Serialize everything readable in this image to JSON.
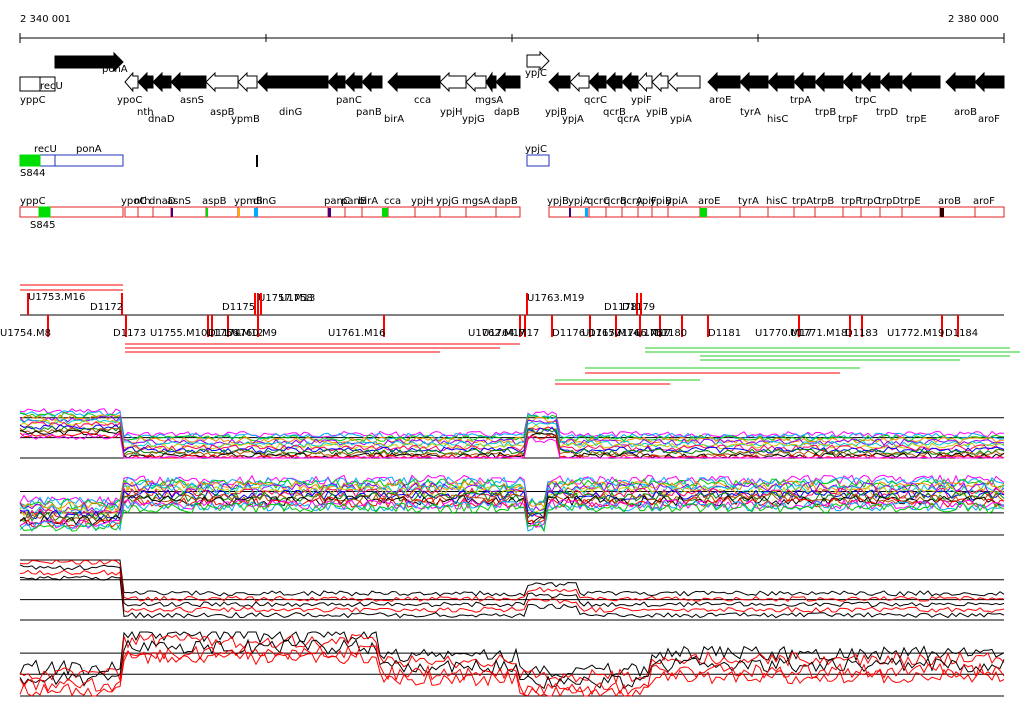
{
  "coordinates": {
    "start_label": "2 340 001",
    "end_label": "2 380 000"
  },
  "colors": {
    "gene_solid": "#000000",
    "gene_open": "#ffffff",
    "box_red": "#e02020",
    "box_blue": "#2030c0",
    "green": "#00dd00",
    "track_line": "#000000",
    "red_line": "#ff0000",
    "green_line": "#22cc22"
  },
  "genes_top": [
    {
      "name": "yppC",
      "filled": false,
      "dir": "none",
      "label_row": 1
    },
    {
      "name": "recU",
      "filled": false,
      "dir": "none",
      "label_row": 0
    },
    {
      "name": "ponA",
      "filled": true,
      "dir": "right",
      "label_row": 0
    },
    {
      "name": "ypoC",
      "filled": false,
      "dir": "left",
      "label_row": 1
    },
    {
      "name": "nth",
      "filled": true,
      "dir": "left",
      "label_row": 2
    },
    {
      "name": "dnaD",
      "filled": true,
      "dir": "left",
      "label_row": 3
    },
    {
      "name": "asnS",
      "filled": true,
      "dir": "left",
      "label_row": 1
    },
    {
      "name": "aspB",
      "filled": false,
      "dir": "left",
      "label_row": 2
    },
    {
      "name": "ypmB",
      "filled": false,
      "dir": "left",
      "label_row": 3
    },
    {
      "name": "dinG",
      "filled": true,
      "dir": "left",
      "label_row": 2
    },
    {
      "name": "panC",
      "filled": true,
      "dir": "left",
      "label_row": 1
    },
    {
      "name": "panB",
      "filled": true,
      "dir": "left",
      "label_row": 2
    },
    {
      "name": "birA",
      "filled": true,
      "dir": "left",
      "label_row": 3
    },
    {
      "name": "cca",
      "filled": true,
      "dir": "left",
      "label_row": 1
    },
    {
      "name": "ypjH",
      "filled": false,
      "dir": "left",
      "label_row": 2
    },
    {
      "name": "ypjG",
      "filled": false,
      "dir": "left",
      "label_row": 3
    },
    {
      "name": "mgsA",
      "filled": true,
      "dir": "left",
      "label_row": 1
    },
    {
      "name": "dapB",
      "filled": true,
      "dir": "left",
      "label_row": 2
    },
    {
      "name": "ypjC",
      "filled": false,
      "dir": "right",
      "label_row": 0
    },
    {
      "name": "ypjB",
      "filled": true,
      "dir": "left",
      "label_row": 2
    },
    {
      "name": "ypjA",
      "filled": false,
      "dir": "left",
      "label_row": 3
    },
    {
      "name": "qcrC",
      "filled": true,
      "dir": "left",
      "label_row": 1
    },
    {
      "name": "qcrB",
      "filled": true,
      "dir": "left",
      "label_row": 2
    },
    {
      "name": "qcrA",
      "filled": true,
      "dir": "left",
      "label_row": 3
    },
    {
      "name": "ypiF",
      "filled": false,
      "dir": "left",
      "label_row": 1
    },
    {
      "name": "ypiB",
      "filled": false,
      "dir": "left",
      "label_row": 2
    },
    {
      "name": "ypiA",
      "filled": false,
      "dir": "left",
      "label_row": 3
    },
    {
      "name": "aroE",
      "filled": true,
      "dir": "left",
      "label_row": 1
    },
    {
      "name": "tyrA",
      "filled": true,
      "dir": "left",
      "label_row": 2
    },
    {
      "name": "hisC",
      "filled": true,
      "dir": "left",
      "label_row": 3
    },
    {
      "name": "trpA",
      "filled": true,
      "dir": "left",
      "label_row": 1
    },
    {
      "name": "trpB",
      "filled": true,
      "dir": "left",
      "label_row": 2
    },
    {
      "name": "trpF",
      "filled": true,
      "dir": "left",
      "label_row": 3
    },
    {
      "name": "trpC",
      "filled": true,
      "dir": "left",
      "label_row": 1
    },
    {
      "name": "trpD",
      "filled": true,
      "dir": "left",
      "label_row": 2
    },
    {
      "name": "trpE",
      "filled": true,
      "dir": "left",
      "label_row": 3
    },
    {
      "name": "aroB",
      "filled": true,
      "dir": "left",
      "label_row": 2
    },
    {
      "name": "aroF",
      "filled": true,
      "dir": "left",
      "label_row": 3
    }
  ],
  "track_boxes_1": [
    {
      "name": "recU",
      "label": "recU",
      "color": "blue"
    },
    {
      "name": "ponA",
      "label": "ponA",
      "color": "blue"
    },
    {
      "name": "ypjC",
      "label": "ypjC",
      "color": "blue"
    },
    {
      "name": "S844",
      "label": "S844",
      "color": "green"
    }
  ],
  "track_boxes_2": {
    "left": [
      {
        "label": "yppC"
      },
      {
        "label": "S845"
      }
    ],
    "mid": [
      "ypoC",
      "nth",
      "dnaD",
      "asnS",
      "aspB",
      "ypmB",
      "dinG",
      "panC",
      "panB",
      "birA",
      "cca",
      "ypjH",
      "ypjG",
      "mgsA",
      "dapB"
    ],
    "right": [
      "ypjB",
      "ypjA",
      "qcrC",
      "qcrB",
      "qcrA",
      "ypiF",
      "ypiB",
      "ypiA",
      "aroE",
      "tyrA",
      "hisC",
      "trpA",
      "trpB",
      "trpF",
      "trpC",
      "trpD",
      "trpE",
      "aroB",
      "aroF"
    ]
  },
  "probes_above": [
    "U1753.M16",
    "D1172",
    "D1175",
    "U1757.M13",
    "U1758",
    "U1763.M19",
    "D1178",
    "D1179"
  ],
  "probes_below": [
    "U1754.M8",
    "D1173",
    "U1755.M10",
    "D1174",
    "U1756.M12",
    "U1760.M9",
    "U1761.M16",
    "U1762.M17",
    "U1764.M17",
    "D1176",
    "D1177",
    "U1765.M14",
    "U1766.M17",
    "U1767",
    "D1180",
    "D1181",
    "U1770.M17",
    "U1771.M18",
    "D1183",
    "U1772.M19",
    "D1184"
  ]
}
